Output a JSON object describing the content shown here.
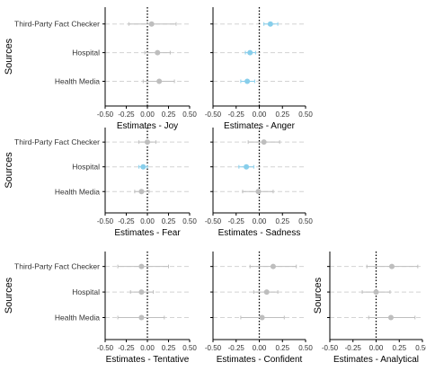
{
  "colors": {
    "sig": "#87CEEB",
    "nonsig": "#BEBEBE",
    "grid": "#D3D3D3",
    "axis": "#000000",
    "text": "#333333"
  },
  "chart_data": [
    {
      "type": "scatter",
      "variant": "forest-plot",
      "xlabel": "Estimates - Joy",
      "ylabel": "Sources",
      "categories": [
        "Third-Party Fact Checker",
        "Hospital",
        "Health Media"
      ],
      "estimates": [
        0.05,
        0.12,
        0.14
      ],
      "lower": [
        -0.22,
        -0.03,
        -0.05
      ],
      "upper": [
        0.34,
        0.27,
        0.32
      ],
      "significant": [
        false,
        false,
        false
      ],
      "xlim": [
        -0.5,
        0.5
      ],
      "xticks": [
        "-0.50",
        "-0.25",
        "0.00",
        "0.25",
        "0.50"
      ],
      "ref_line": 0
    },
    {
      "type": "scatter",
      "variant": "forest-plot",
      "xlabel": "Estimates - Anger",
      "ylabel": "",
      "categories": [
        "Third-Party Fact Checker",
        "Hospital",
        "Health Media"
      ],
      "estimates": [
        0.12,
        -0.1,
        -0.13
      ],
      "lower": [
        0.05,
        -0.15,
        -0.2
      ],
      "upper": [
        0.2,
        -0.04,
        -0.05
      ],
      "significant": [
        true,
        true,
        true
      ],
      "xlim": [
        -0.5,
        0.5
      ],
      "xticks": [
        "-0.50",
        "-0.25",
        "0.00",
        "0.25",
        "0.50"
      ],
      "ref_line": 0
    },
    {
      "type": "scatter",
      "variant": "forest-plot",
      "xlabel": "Estimates - Fear",
      "ylabel": "Sources",
      "categories": [
        "Third-Party Fact Checker",
        "Hospital",
        "Health Media"
      ],
      "estimates": [
        0.0,
        -0.05,
        -0.07
      ],
      "lower": [
        -0.1,
        -0.1,
        -0.15
      ],
      "upper": [
        0.1,
        0.0,
        0.02
      ],
      "significant": [
        false,
        true,
        false
      ],
      "xlim": [
        -0.5,
        0.5
      ],
      "xticks": [
        "-0.50",
        "-0.25",
        "0.00",
        "0.25",
        "0.50"
      ],
      "ref_line": 0
    },
    {
      "type": "scatter",
      "variant": "forest-plot",
      "xlabel": "Estimates - Sadness",
      "ylabel": "",
      "categories": [
        "Third-Party Fact Checker",
        "Hospital",
        "Health Media"
      ],
      "estimates": [
        0.05,
        -0.14,
        -0.01
      ],
      "lower": [
        -0.12,
        -0.22,
        -0.18
      ],
      "upper": [
        0.22,
        -0.06,
        0.15
      ],
      "significant": [
        false,
        true,
        false
      ],
      "xlim": [
        -0.5,
        0.5
      ],
      "xticks": [
        "-0.50",
        "-0.25",
        "0.00",
        "0.25",
        "0.50"
      ],
      "ref_line": 0
    },
    {
      "type": "scatter",
      "variant": "forest-plot",
      "xlabel": "Estimates - Tentative",
      "ylabel": "Sources",
      "categories": [
        "Third-Party Fact Checker",
        "Hospital",
        "Health Media"
      ],
      "estimates": [
        -0.07,
        -0.07,
        -0.07
      ],
      "lower": [
        -0.35,
        -0.2,
        -0.35
      ],
      "upper": [
        0.25,
        0.07,
        0.2
      ],
      "significant": [
        false,
        false,
        false
      ],
      "xlim": [
        -0.5,
        0.5
      ],
      "xticks": [
        "-0.50",
        "-0.25",
        "0.00",
        "0.25",
        "0.50"
      ],
      "ref_line": 0
    },
    {
      "type": "scatter",
      "variant": "forest-plot",
      "xlabel": "Estimates - Confident",
      "ylabel": "",
      "categories": [
        "Third-Party Fact Checker",
        "Hospital",
        "Health Media"
      ],
      "estimates": [
        0.15,
        0.08,
        0.03
      ],
      "lower": [
        -0.1,
        -0.06,
        -0.2
      ],
      "upper": [
        0.4,
        0.2,
        0.27
      ],
      "significant": [
        false,
        false,
        false
      ],
      "xlim": [
        -0.5,
        0.5
      ],
      "xticks": [
        "-0.50",
        "-0.25",
        "0.00",
        "0.25",
        "0.50"
      ],
      "ref_line": 0
    },
    {
      "type": "scatter",
      "variant": "forest-plot",
      "xlabel": "Estimates - Analytical",
      "ylabel": "Sources",
      "categories": [
        "Third-Party Fact Checker",
        "Hospital",
        "Health Media"
      ],
      "estimates": [
        0.17,
        0.0,
        0.16
      ],
      "lower": [
        -0.1,
        -0.15,
        -0.08
      ],
      "upper": [
        0.45,
        0.15,
        0.42
      ],
      "significant": [
        false,
        false,
        false
      ],
      "xlim": [
        -0.5,
        0.5
      ],
      "xticks": [
        "-0.50",
        "-0.25",
        "0.00",
        "0.25",
        "0.50"
      ],
      "ref_line": 0
    }
  ]
}
